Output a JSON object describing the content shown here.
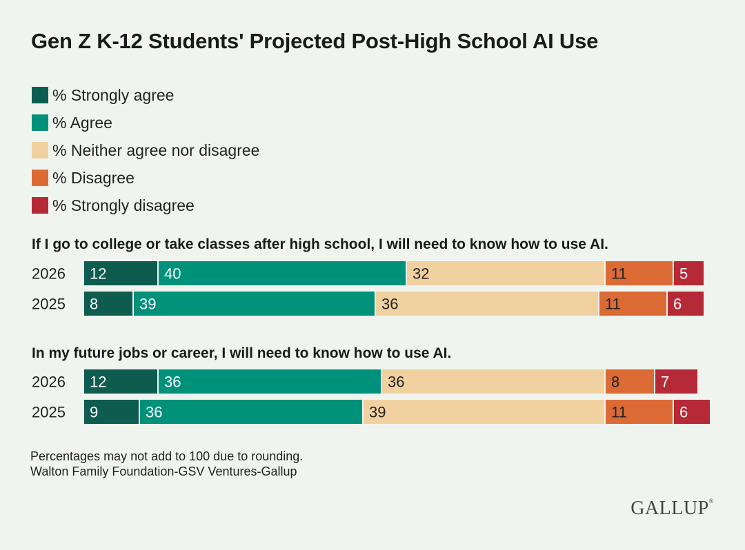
{
  "title": "Gen Z K-12 Students' Projected Post-High School AI Use",
  "legend": [
    {
      "label": "% Strongly agree",
      "color": "#0d5c4f"
    },
    {
      "label": "% Agree",
      "color": "#00917a"
    },
    {
      "label": "% Neither agree nor disagree",
      "color": "#f2d1a0"
    },
    {
      "label": "% Disagree",
      "color": "#dc6a34"
    },
    {
      "label": "% Strongly disagree",
      "color": "#b52a36"
    }
  ],
  "chart_data": [
    {
      "type": "bar",
      "stacked": true,
      "orientation": "horizontal",
      "title": "If I go to college or take classes after high school, I will need to know how to use AI.",
      "categories": [
        "2026",
        "2025"
      ],
      "series": [
        {
          "name": "% Strongly agree",
          "values": [
            12,
            8
          ]
        },
        {
          "name": "% Agree",
          "values": [
            40,
            39
          ]
        },
        {
          "name": "% Neither agree nor disagree",
          "values": [
            32,
            36
          ]
        },
        {
          "name": "% Disagree",
          "values": [
            11,
            11
          ]
        },
        {
          "name": "% Strongly disagree",
          "values": [
            5,
            6
          ]
        }
      ]
    },
    {
      "type": "bar",
      "stacked": true,
      "orientation": "horizontal",
      "title": "In my future jobs or career, I will need to know how to use AI.",
      "categories": [
        "2026",
        "2025"
      ],
      "series": [
        {
          "name": "% Strongly agree",
          "values": [
            12,
            9
          ]
        },
        {
          "name": "% Agree",
          "values": [
            36,
            36
          ]
        },
        {
          "name": "% Neither agree nor disagree",
          "values": [
            36,
            39
          ]
        },
        {
          "name": "% Disagree",
          "values": [
            8,
            11
          ]
        },
        {
          "name": "% Strongly disagree",
          "values": [
            7,
            6
          ]
        }
      ]
    }
  ],
  "footnote": "Percentages may not add to 100 due to rounding.",
  "source": "Walton Family Foundation-GSV Ventures-Gallup",
  "logo": "GALLUP",
  "logo_mark": "®"
}
